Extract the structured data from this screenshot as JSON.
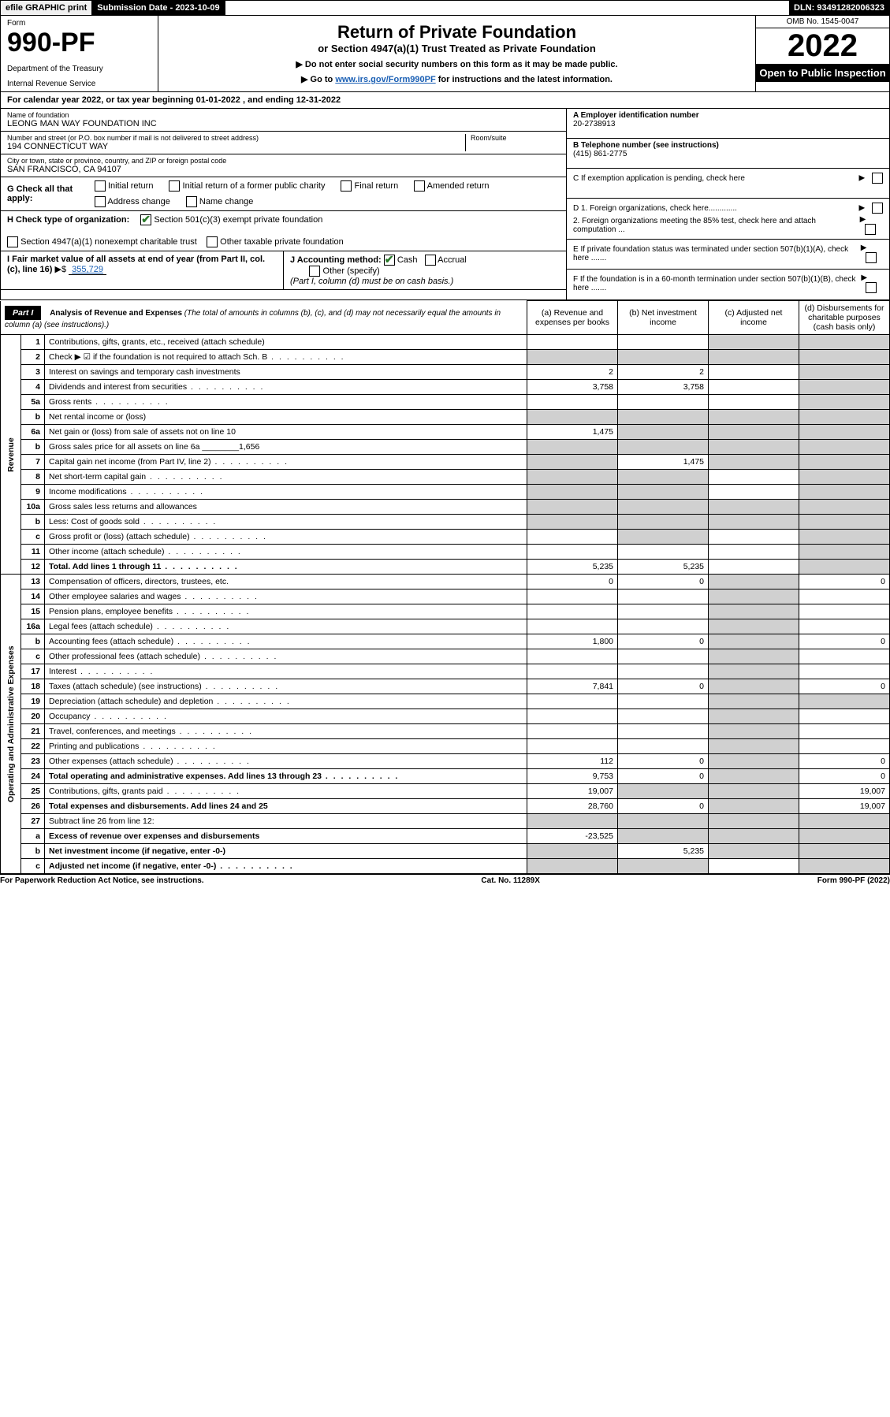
{
  "topbar": {
    "efile": "efile GRAPHIC print",
    "submission": "Submission Date - 2023-10-09",
    "dln": "DLN: 93491282006323"
  },
  "header": {
    "form_label": "Form",
    "form_number": "990-PF",
    "dept1": "Department of the Treasury",
    "dept2": "Internal Revenue Service",
    "title": "Return of Private Foundation",
    "subtitle": "or Section 4947(a)(1) Trust Treated as Private Foundation",
    "note1": "▶ Do not enter social security numbers on this form as it may be made public.",
    "note2_prefix": "▶ Go to ",
    "note2_link": "www.irs.gov/Form990PF",
    "note2_suffix": " for instructions and the latest information.",
    "omb": "OMB No. 1545-0047",
    "year": "2022",
    "open": "Open to Public Inspection"
  },
  "calyear": "For calendar year 2022, or tax year beginning 01-01-2022                    , and ending 12-31-2022",
  "foundation": {
    "name_label": "Name of foundation",
    "name": "LEONG MAN WAY FOUNDATION INC",
    "addr_label": "Number and street (or P.O. box number if mail is not delivered to street address)",
    "addr": "194 CONNECTICUT WAY",
    "room_label": "Room/suite",
    "city_label": "City or town, state or province, country, and ZIP or foreign postal code",
    "city": "SAN FRANCISCO, CA  94107"
  },
  "rightinfo": {
    "a_label": "A Employer identification number",
    "a_val": "20-2738913",
    "b_label": "B Telephone number (see instructions)",
    "b_val": "(415) 861-2775",
    "c_label": "C If exemption application is pending, check here",
    "d1": "D 1. Foreign organizations, check here.............",
    "d2": "   2. Foreign organizations meeting the 85% test, check here and attach computation ...",
    "e": "E  If private foundation status was terminated under section 507(b)(1)(A), check here .......",
    "f": "F  If the foundation is in a 60-month termination under section 507(b)(1)(B), check here ......."
  },
  "g": {
    "label": "G Check all that apply:",
    "opts": [
      "Initial return",
      "Initial return of a former public charity",
      "Final return",
      "Amended return",
      "Address change",
      "Name change"
    ]
  },
  "h": {
    "label": "H Check type of organization:",
    "opt1": "Section 501(c)(3) exempt private foundation",
    "opt2": "Section 4947(a)(1) nonexempt charitable trust",
    "opt3": "Other taxable private foundation"
  },
  "i": {
    "label": "I Fair market value of all assets at end of year (from Part II, col. (c), line 16)",
    "arrow": "▶$",
    "val": "355,729"
  },
  "j": {
    "label": "J Accounting method:",
    "cash": "Cash",
    "accrual": "Accrual",
    "other": "Other (specify)",
    "note": "(Part I, column (d) must be on cash basis.)"
  },
  "part1": {
    "label": "Part I",
    "title": "Analysis of Revenue and Expenses",
    "note": " (The total of amounts in columns (b), (c), and (d) may not necessarily equal the amounts in column (a) (see instructions).)",
    "col_a": "(a)   Revenue and expenses per books",
    "col_b": "(b)   Net investment income",
    "col_c": "(c)   Adjusted net income",
    "col_d": "(d)   Disbursements for charitable purposes (cash basis only)"
  },
  "vheads": {
    "rev": "Revenue",
    "exp": "Operating and Administrative Expenses"
  },
  "rows": [
    {
      "n": "1",
      "d": "Contributions, gifts, grants, etc., received (attach schedule)",
      "a": "",
      "b": "",
      "c": "s",
      "dv": "s"
    },
    {
      "n": "2",
      "d": "Check ▶ ☑ if the foundation is not required to attach Sch. B",
      "dots": true,
      "a": "s",
      "b": "s",
      "c": "s",
      "dv": "s"
    },
    {
      "n": "3",
      "d": "Interest on savings and temporary cash investments",
      "a": "2",
      "b": "2",
      "c": "",
      "dv": "s"
    },
    {
      "n": "4",
      "d": "Dividends and interest from securities",
      "dots": true,
      "a": "3,758",
      "b": "3,758",
      "c": "",
      "dv": "s"
    },
    {
      "n": "5a",
      "d": "Gross rents",
      "dots": true,
      "a": "",
      "b": "",
      "c": "",
      "dv": "s"
    },
    {
      "n": "b",
      "d": "Net rental income or (loss)",
      "a": "s",
      "b": "s",
      "c": "s",
      "dv": "s"
    },
    {
      "n": "6a",
      "d": "Net gain or (loss) from sale of assets not on line 10",
      "a": "1,475",
      "b": "s",
      "c": "s",
      "dv": "s"
    },
    {
      "n": "b",
      "d": "Gross sales price for all assets on line 6a ________1,656",
      "a": "s",
      "b": "s",
      "c": "s",
      "dv": "s"
    },
    {
      "n": "7",
      "d": "Capital gain net income (from Part IV, line 2)",
      "dots": true,
      "a": "s",
      "b": "1,475",
      "c": "s",
      "dv": "s"
    },
    {
      "n": "8",
      "d": "Net short-term capital gain",
      "dots": true,
      "a": "s",
      "b": "s",
      "c": "",
      "dv": "s"
    },
    {
      "n": "9",
      "d": "Income modifications",
      "dots": true,
      "a": "s",
      "b": "s",
      "c": "",
      "dv": "s"
    },
    {
      "n": "10a",
      "d": "Gross sales less returns and allowances",
      "a": "s",
      "b": "s",
      "c": "s",
      "dv": "s"
    },
    {
      "n": "b",
      "d": "Less: Cost of goods sold",
      "dots": true,
      "a": "s",
      "b": "s",
      "c": "s",
      "dv": "s"
    },
    {
      "n": "c",
      "d": "Gross profit or (loss) (attach schedule)",
      "dots": true,
      "a": "",
      "b": "s",
      "c": "",
      "dv": "s"
    },
    {
      "n": "11",
      "d": "Other income (attach schedule)",
      "dots": true,
      "a": "",
      "b": "",
      "c": "",
      "dv": "s"
    },
    {
      "n": "12",
      "d": "Total. Add lines 1 through 11",
      "dots": true,
      "bold": true,
      "a": "5,235",
      "b": "5,235",
      "c": "",
      "dv": "s"
    },
    {
      "n": "13",
      "d": "Compensation of officers, directors, trustees, etc.",
      "a": "0",
      "b": "0",
      "c": "s",
      "dv": "0"
    },
    {
      "n": "14",
      "d": "Other employee salaries and wages",
      "dots": true,
      "a": "",
      "b": "",
      "c": "s",
      "dv": ""
    },
    {
      "n": "15",
      "d": "Pension plans, employee benefits",
      "dots": true,
      "a": "",
      "b": "",
      "c": "s",
      "dv": ""
    },
    {
      "n": "16a",
      "d": "Legal fees (attach schedule)",
      "dots": true,
      "a": "",
      "b": "",
      "c": "s",
      "dv": ""
    },
    {
      "n": "b",
      "d": "Accounting fees (attach schedule)",
      "dots": true,
      "a": "1,800",
      "b": "0",
      "c": "s",
      "dv": "0"
    },
    {
      "n": "c",
      "d": "Other professional fees (attach schedule)",
      "dots": true,
      "a": "",
      "b": "",
      "c": "s",
      "dv": ""
    },
    {
      "n": "17",
      "d": "Interest",
      "dots": true,
      "a": "",
      "b": "",
      "c": "s",
      "dv": ""
    },
    {
      "n": "18",
      "d": "Taxes (attach schedule) (see instructions)",
      "dots": true,
      "a": "7,841",
      "b": "0",
      "c": "s",
      "dv": "0"
    },
    {
      "n": "19",
      "d": "Depreciation (attach schedule) and depletion",
      "dots": true,
      "a": "",
      "b": "",
      "c": "s",
      "dv": "s"
    },
    {
      "n": "20",
      "d": "Occupancy",
      "dots": true,
      "a": "",
      "b": "",
      "c": "s",
      "dv": ""
    },
    {
      "n": "21",
      "d": "Travel, conferences, and meetings",
      "dots": true,
      "a": "",
      "b": "",
      "c": "s",
      "dv": ""
    },
    {
      "n": "22",
      "d": "Printing and publications",
      "dots": true,
      "a": "",
      "b": "",
      "c": "s",
      "dv": ""
    },
    {
      "n": "23",
      "d": "Other expenses (attach schedule)",
      "dots": true,
      "a": "112",
      "b": "0",
      "c": "s",
      "dv": "0"
    },
    {
      "n": "24",
      "d": "Total operating and administrative expenses. Add lines 13 through 23",
      "dots": true,
      "bold": true,
      "a": "9,753",
      "b": "0",
      "c": "s",
      "dv": "0"
    },
    {
      "n": "25",
      "d": "Contributions, gifts, grants paid",
      "dots": true,
      "a": "19,007",
      "b": "s",
      "c": "s",
      "dv": "19,007"
    },
    {
      "n": "26",
      "d": "Total expenses and disbursements. Add lines 24 and 25",
      "bold": true,
      "a": "28,760",
      "b": "0",
      "c": "s",
      "dv": "19,007"
    },
    {
      "n": "27",
      "d": "Subtract line 26 from line 12:",
      "a": "s",
      "b": "s",
      "c": "s",
      "dv": "s"
    },
    {
      "n": "a",
      "d": "Excess of revenue over expenses and disbursements",
      "bold": true,
      "a": "-23,525",
      "b": "s",
      "c": "s",
      "dv": "s"
    },
    {
      "n": "b",
      "d": "Net investment income (if negative, enter -0-)",
      "bold": true,
      "a": "s",
      "b": "5,235",
      "c": "s",
      "dv": "s"
    },
    {
      "n": "c",
      "d": "Adjusted net income (if negative, enter -0-)",
      "dots": true,
      "bold": true,
      "a": "s",
      "b": "s",
      "c": "",
      "dv": "s"
    }
  ],
  "footer": {
    "left": "For Paperwork Reduction Act Notice, see instructions.",
    "mid": "Cat. No. 11289X",
    "right": "Form 990-PF (2022)"
  }
}
